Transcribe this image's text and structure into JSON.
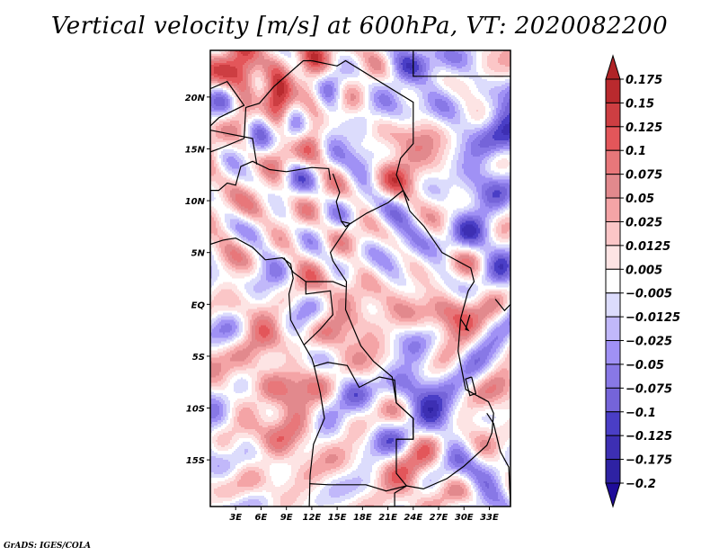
{
  "chart_data": {
    "type": "heatmap",
    "title": "Vertical velocity [m/s] at 600hPa, VT: 2020082200",
    "variable": "Vertical velocity",
    "units": "m/s",
    "level": "600hPa",
    "valid_time": "2020082200",
    "xlabel": "",
    "ylabel": "",
    "x_range_deg": [
      0,
      35.5
    ],
    "y_range_deg": [
      -19.5,
      24.5
    ],
    "x_ticks": [
      {
        "value": 3,
        "label": "3E"
      },
      {
        "value": 6,
        "label": "6E"
      },
      {
        "value": 9,
        "label": "9E"
      },
      {
        "value": 12,
        "label": "12E"
      },
      {
        "value": 15,
        "label": "15E"
      },
      {
        "value": 18,
        "label": "18E"
      },
      {
        "value": 21,
        "label": "21E"
      },
      {
        "value": 24,
        "label": "24E"
      },
      {
        "value": 27,
        "label": "27E"
      },
      {
        "value": 30,
        "label": "30E"
      },
      {
        "value": 33,
        "label": "33E"
      }
    ],
    "y_ticks": [
      {
        "value": 20,
        "label": "20N"
      },
      {
        "value": 15,
        "label": "15N"
      },
      {
        "value": 10,
        "label": "10N"
      },
      {
        "value": 5,
        "label": "5N"
      },
      {
        "value": 0,
        "label": "EQ"
      },
      {
        "value": -5,
        "label": "5S"
      },
      {
        "value": -10,
        "label": "10S"
      },
      {
        "value": -15,
        "label": "15S"
      }
    ],
    "colorbar": {
      "orientation": "vertical",
      "placement": "right",
      "extend": "both",
      "labels": [
        "0.175",
        "0.15",
        "0.125",
        "0.1",
        "0.075",
        "0.05",
        "0.025",
        "0.0125",
        "0.005",
        "−0.005",
        "−0.0125",
        "−0.025",
        "−0.05",
        "−0.075",
        "−0.1",
        "−0.125",
        "−0.175",
        "−0.2"
      ],
      "colors": [
        "#b02427",
        "#b92a2e",
        "#cd3e42",
        "#e3565a",
        "#e8777a",
        "#e2898d",
        "#f4a4a6",
        "#fbc6c7",
        "#fde4e4",
        "#ffffff",
        "#dcdcfc",
        "#c1b8fa",
        "#a091f5",
        "#8878e6",
        "#7564d9",
        "#4a3ec6",
        "#3d2fb3",
        "#2e22a3",
        "#1f0c9a"
      ]
    },
    "regions_note": "Mixed red (ascent) and blue (descent) patches over Central/West Africa; strongest red over NE corner near 1-2E,22N and over East African Rift (~29E,1S); strongest blue bands over NW and SE.",
    "grid": false
  },
  "footer": {
    "credit": "GrADS: IGES/COLA"
  }
}
